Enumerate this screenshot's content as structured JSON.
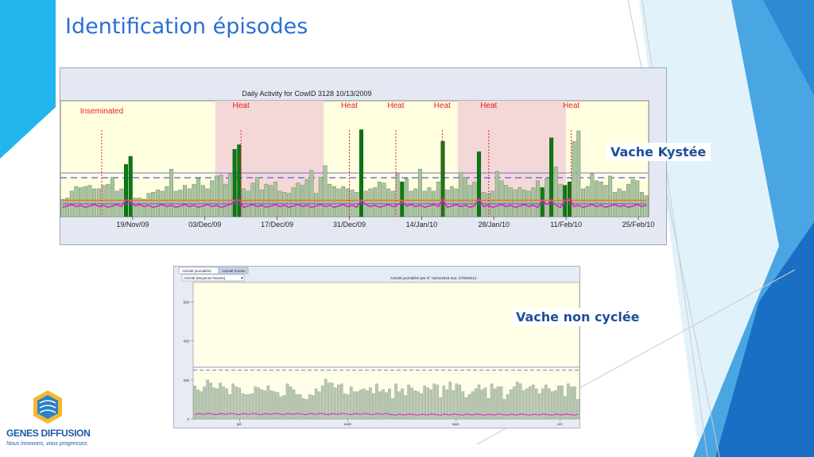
{
  "slide": {
    "title": "Identification épisodes",
    "callout_cyst": "Vache Kystée",
    "callout_noncycle": "Vache non cyclée"
  },
  "logo": {
    "name": "GENES DIFFUSION",
    "tagline": "Nous innovons, vous progressez."
  },
  "chart1": {
    "title": "Daily Activity for CowID 3128 10/13/2009",
    "event_labels": [
      "Inseminated",
      "Heat",
      "Heat",
      "Heat",
      "Heat",
      "Heat",
      "Heat"
    ],
    "x_ticks": [
      "19/Nov/09",
      "03/Dec/09",
      "17/Dec/09",
      "31/Dec/09",
      "14/Jan/10",
      "28/Jan/10",
      "11/Feb/10",
      "25/Feb/10"
    ],
    "colors": {
      "plot_bg": "#ffffe0",
      "heat_band": "#f4d8d8",
      "bar_normal": "#a8c4a0",
      "bar_heat": "#0a7a12",
      "marker": "#e81e1e",
      "line_magenta": "#e020c8",
      "line_blue": "#5a5ad8",
      "line_orange": "#f07818"
    }
  },
  "chart2": {
    "tabs": [
      "Activité journalière",
      "Activité horaire"
    ],
    "dropdown": "Activité (Moyenne heures)",
    "title": "Activité journalière par N° Vache2515 mar. 27/08/2013",
    "y_ticks": [
      "600",
      "400",
      "200",
      "0"
    ],
    "x_ticks": [
      "juil.",
      "août",
      "sept.",
      "oct."
    ],
    "colors": {
      "plot_bg": "#ffffe8",
      "bar": "#b7c7b2",
      "line_magenta": "#e020c8",
      "line_blue": "#6a6ae0"
    }
  },
  "chart_data": [
    {
      "type": "bar",
      "title": "Daily Activity for CowID 3128 10/13/2009",
      "x_range": [
        "2009-11-05",
        "2010-02-27"
      ],
      "x_ticks": [
        "19/Nov/09",
        "03/Dec/09",
        "17/Dec/09",
        "31/Dec/09",
        "14/Jan/10",
        "28/Jan/10",
        "11/Feb/10",
        "25/Feb/10"
      ],
      "events": [
        {
          "label": "Inseminated",
          "date": "2009-11-13"
        },
        {
          "label": "Heat",
          "date": "2009-12-10"
        },
        {
          "label": "Heat",
          "date": "2009-12-31"
        },
        {
          "label": "Heat",
          "date": "2010-01-09"
        },
        {
          "label": "Heat",
          "date": "2010-01-18"
        },
        {
          "label": "Heat",
          "date": "2010-01-27"
        },
        {
          "label": "Heat",
          "date": "2010-02-12"
        }
      ],
      "heat_periods": [
        [
          "2009-12-05",
          "2009-12-26"
        ],
        [
          "2010-01-21",
          "2010-02-11"
        ]
      ],
      "daily_activity": [
        15,
        16,
        22,
        26,
        25,
        26,
        27,
        24,
        24,
        27,
        28,
        34,
        22,
        24,
        45,
        52,
        16,
        16,
        15,
        20,
        21,
        23,
        22,
        26,
        41,
        22,
        23,
        27,
        24,
        28,
        33,
        27,
        24,
        31,
        35,
        36,
        28,
        37,
        58,
        62,
        24,
        22,
        29,
        34,
        23,
        28,
        27,
        30,
        22,
        21,
        20,
        25,
        29,
        27,
        32,
        40,
        20,
        34,
        44,
        28,
        26,
        24,
        26,
        24,
        23,
        21,
        75,
        22,
        24,
        25,
        30,
        29,
        24,
        22,
        37,
        30,
        33,
        22,
        24,
        41,
        22,
        25,
        22,
        30,
        65,
        23,
        26,
        24,
        38,
        34,
        27,
        30,
        56,
        21,
        20,
        22,
        39,
        31,
        27,
        25,
        23,
        25,
        23,
        22,
        25,
        31,
        25,
        33,
        68,
        43,
        28,
        27,
        30,
        65,
        74,
        24,
        26,
        37,
        31,
        30,
        27,
        35,
        21,
        24,
        22,
        28,
        32,
        31,
        21,
        18
      ],
      "heat_days": [
        14,
        15,
        38,
        39,
        66,
        75,
        84,
        92,
        106,
        108,
        111,
        112
      ]
    },
    {
      "type": "bar",
      "title": "Activité journalière par N° Vache2515 mar. 27/08/2013",
      "y_ticks": [
        "600",
        "400",
        "200",
        "0"
      ],
      "ylim": [
        0,
        700
      ],
      "x_ticks": [
        "juil.",
        "août",
        "sept.",
        "oct."
      ],
      "daily_activity": [
        170,
        150,
        140,
        165,
        200,
        185,
        160,
        155,
        185,
        165,
        155,
        125,
        180,
        165,
        160,
        130,
        125,
        125,
        130,
        165,
        160,
        150,
        145,
        170,
        145,
        140,
        135,
        115,
        120,
        180,
        165,
        150,
        125,
        125,
        105,
        100,
        125,
        120,
        155,
        140,
        170,
        205,
        185,
        185,
        160,
        175,
        180,
        130,
        125,
        165,
        140,
        140,
        150,
        155,
        145,
        160,
        130,
        180,
        140,
        150,
        135,
        155,
        105,
        180,
        140,
        155,
        120,
        175,
        160,
        145,
        140,
        130,
        170,
        160,
        150,
        180,
        175,
        110,
        170,
        150,
        190,
        145,
        180,
        175,
        140,
        110,
        125,
        140,
        155,
        175,
        150,
        160,
        105,
        180,
        155,
        165,
        165,
        100,
        125,
        150,
        165,
        190,
        180,
        145,
        155,
        165,
        175,
        155,
        130,
        155,
        175,
        155,
        140,
        145,
        170,
        170,
        115,
        180,
        165,
        165,
        100
      ],
      "thresholds": [
        265,
        250
      ]
    }
  ]
}
